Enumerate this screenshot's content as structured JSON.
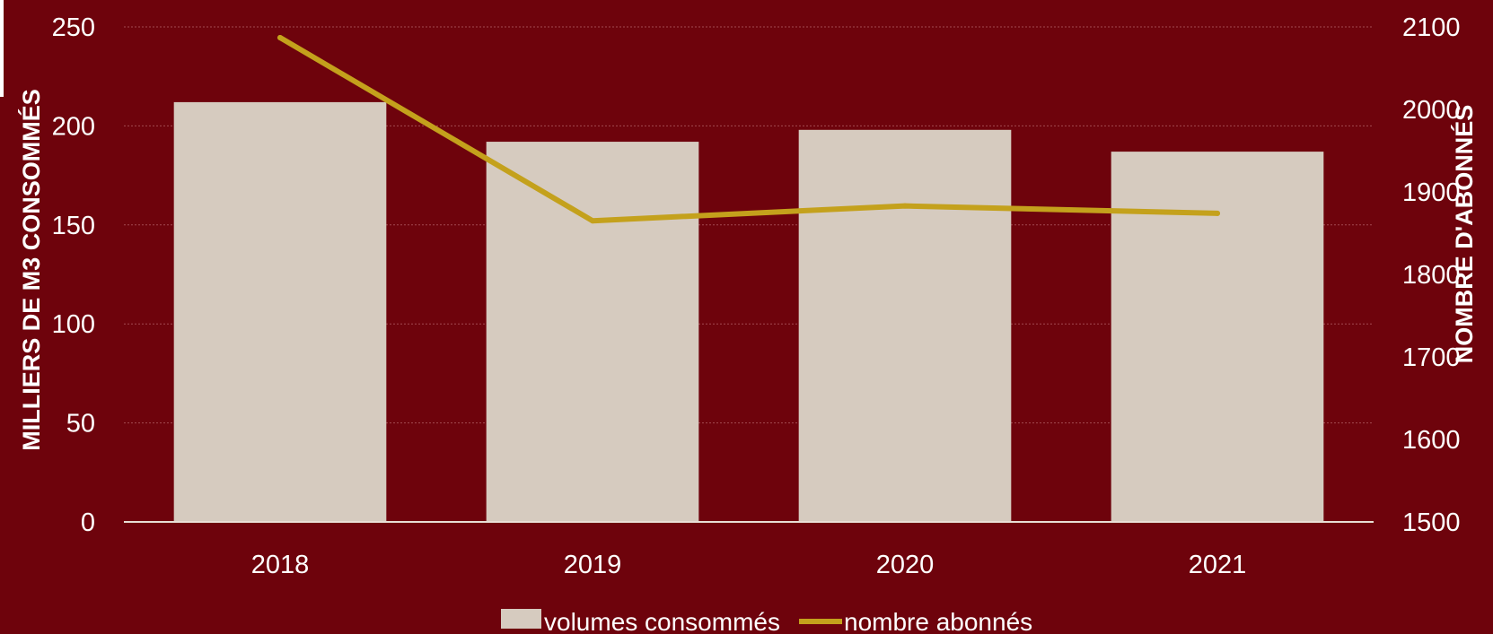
{
  "chart_data": {
    "type": "bar",
    "categories": [
      "2018",
      "2019",
      "2020",
      "2021"
    ],
    "series": [
      {
        "name": "volumes consommés",
        "kind": "bar",
        "axis": "left",
        "color": "#d6cbbf",
        "values": [
          212,
          192,
          198,
          187
        ]
      },
      {
        "name": "nombre abonnés",
        "kind": "line",
        "axis": "right",
        "color": "#c4a11c",
        "values": [
          2087,
          1865,
          1883,
          1874
        ]
      }
    ],
    "ylabel": "MILLIERS DE M3 CONSOMMÉS",
    "y2label": "NOMBRE D'ABONNÉS",
    "ylim": [
      0,
      250
    ],
    "y2lim": [
      1500,
      2100
    ],
    "yticks": [
      "0",
      "50",
      "100",
      "150",
      "200",
      "250"
    ],
    "y2ticks": [
      "1500",
      "1600",
      "1700",
      "1800",
      "1900",
      "2000",
      "2100"
    ],
    "grid": true,
    "legend_position": "bottom",
    "background_color": "#6e030c"
  }
}
